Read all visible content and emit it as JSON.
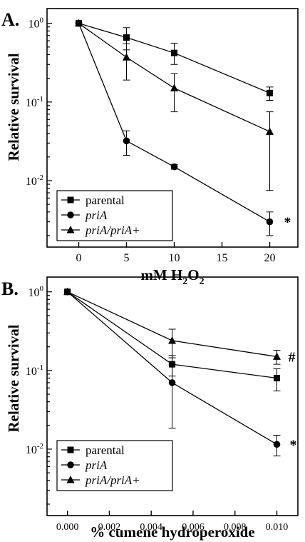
{
  "chart_data": [
    {
      "panel_label": "A.",
      "type": "line",
      "x": [
        0,
        5,
        10,
        20
      ],
      "xlabel": "mM H2O2",
      "xlabel_parts": {
        "main": "mM H",
        "sub1": "2",
        "mid": "O",
        "sub2": "2"
      },
      "ylabel": "Relative survival",
      "xlim": [
        -2.5,
        22.5
      ],
      "ylim": [
        0.0018,
        1.25
      ],
      "y_scale": "log",
      "x_ticks": [
        0,
        5,
        10,
        15,
        20
      ],
      "x_tick_labels": [
        "0",
        "5",
        "10",
        "15",
        "20"
      ],
      "y_ticks": [
        1,
        0.1,
        0.01
      ],
      "y_tick_labels": [
        {
          "base": "10",
          "exp": "0"
        },
        {
          "base": "10",
          "exp": "-1"
        },
        {
          "base": "10",
          "exp": "-2"
        }
      ],
      "series": [
        {
          "name": "parental",
          "marker": "square",
          "values": [
            1.0,
            0.66,
            0.42,
            0.13
          ],
          "err_low": [
            1.0,
            0.46,
            0.3,
            0.105
          ],
          "err_high": [
            1.0,
            0.88,
            0.56,
            0.155
          ]
        },
        {
          "name": "priA",
          "name_style": "italic",
          "marker": "circle",
          "values": [
            1.0,
            0.032,
            0.015,
            0.003
          ],
          "err_low": [
            1.0,
            0.021,
            0.014,
            0.002
          ],
          "err_high": [
            1.0,
            0.043,
            0.016,
            0.004
          ]
        },
        {
          "name": "priA/priA+",
          "name_style": "italic",
          "marker": "triangle",
          "values": [
            1.0,
            0.37,
            0.15,
            0.042
          ],
          "err_low": [
            1.0,
            0.19,
            0.075,
            0.0075
          ],
          "err_high": [
            1.0,
            0.55,
            0.23,
            0.075
          ]
        }
      ],
      "annotations": [
        {
          "text": "*",
          "series": "priA",
          "x": 20
        }
      ],
      "legend_position": "bottom-left"
    },
    {
      "panel_label": "B.",
      "type": "line",
      "x": [
        0,
        0.005,
        0.01
      ],
      "xlabel": "% cumene hydroperoxide",
      "ylabel": "Relative survival",
      "xlim": [
        -0.0006,
        0.0108
      ],
      "ylim": [
        0.0018,
        1.25
      ],
      "y_scale": "log",
      "x_ticks": [
        0,
        0.002,
        0.004,
        0.006,
        0.008,
        0.01
      ],
      "x_tick_labels": [
        "0.000",
        "0.002",
        "0.004",
        "0.006",
        "0.008",
        "0.010"
      ],
      "y_ticks": [
        1,
        0.1,
        0.01
      ],
      "y_tick_labels": [
        {
          "base": "10",
          "exp": "0"
        },
        {
          "base": "10",
          "exp": "-1"
        },
        {
          "base": "10",
          "exp": "-2"
        }
      ],
      "series": [
        {
          "name": "parental",
          "marker": "square",
          "values": [
            1.0,
            0.12,
            0.08
          ],
          "err_low": [
            1.0,
            0.085,
            0.055
          ],
          "err_high": [
            1.0,
            0.155,
            0.105
          ]
        },
        {
          "name": "priA",
          "name_style": "italic",
          "marker": "circle",
          "values": [
            1.0,
            0.07,
            0.0115
          ],
          "err_low": [
            1.0,
            0.0185,
            0.0082
          ],
          "err_high": [
            1.0,
            0.12,
            0.015
          ]
        },
        {
          "name": "priA/priA+",
          "name_style": "italic",
          "marker": "triangle",
          "values": [
            1.0,
            0.24,
            0.15
          ],
          "err_low": [
            1.0,
            0.145,
            0.12
          ],
          "err_high": [
            1.0,
            0.335,
            0.18
          ]
        }
      ],
      "annotations": [
        {
          "text": "#",
          "series": "priA/priA+",
          "x": 0.01
        },
        {
          "text": "*",
          "series": "priA",
          "x": 0.01
        }
      ],
      "legend_position": "bottom-left"
    }
  ]
}
